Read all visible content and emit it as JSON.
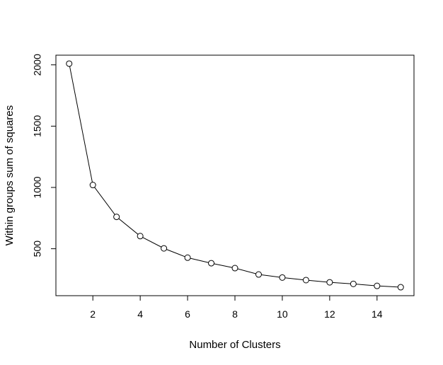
{
  "chart_data": {
    "type": "line",
    "title": "",
    "xlabel": "Number of Clusters",
    "ylabel": "Within groups sum of squares",
    "x": [
      1,
      2,
      3,
      4,
      5,
      6,
      7,
      8,
      9,
      10,
      11,
      12,
      13,
      14,
      15
    ],
    "series": [
      {
        "values": [
          2010,
          1020,
          760,
          603,
          503,
          427,
          382,
          342,
          290,
          265,
          244,
          226,
          213,
          197,
          186
        ]
      }
    ],
    "xlim": [
      0.44,
      15.56
    ],
    "ylim": [
      117,
      2079
    ],
    "x_ticks": [
      2,
      4,
      6,
      8,
      10,
      12,
      14
    ],
    "y_ticks": [
      500,
      1000,
      1500,
      2000
    ],
    "x_tick_labels": [
      "2",
      "4",
      "6",
      "8",
      "10",
      "12",
      "14"
    ],
    "y_tick_labels": [
      "500",
      "1000",
      "1500",
      "2000"
    ],
    "grid": false,
    "markers": "open-circle",
    "line_color": "#000000",
    "background": "#ffffff"
  }
}
